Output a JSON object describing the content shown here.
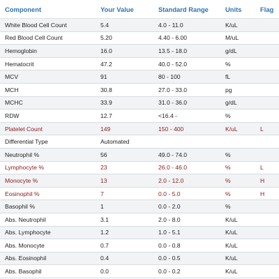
{
  "table": {
    "headers": {
      "component": "Component",
      "value": "Your Value",
      "range": "Standard Range",
      "units": "Units",
      "flag": "Flag"
    },
    "rows": [
      {
        "component": "White Blood Cell Count",
        "value": "5.4",
        "range": "4.0 - 11.0",
        "units": "K/uL",
        "flag": "",
        "abnormal": false
      },
      {
        "component": "Red Blood Cell Count",
        "value": "5.20",
        "range": "4.40 - 6.00",
        "units": "M/uL",
        "flag": "",
        "abnormal": false
      },
      {
        "component": "Hemoglobin",
        "value": "16.0",
        "range": "13.5 - 18.0",
        "units": "g/dL",
        "flag": "",
        "abnormal": false
      },
      {
        "component": "Hematocrit",
        "value": "47.2",
        "range": "40.0 - 52.0",
        "units": "%",
        "flag": "",
        "abnormal": false
      },
      {
        "component": "MCV",
        "value": "91",
        "range": "80 - 100",
        "units": "fL",
        "flag": "",
        "abnormal": false
      },
      {
        "component": "MCH",
        "value": "30.8",
        "range": "27.0 - 33.0",
        "units": "pg",
        "flag": "",
        "abnormal": false
      },
      {
        "component": "MCHC",
        "value": "33.9",
        "range": "31.0 - 36.0",
        "units": "g/dL",
        "flag": "",
        "abnormal": false
      },
      {
        "component": "RDW",
        "value": "12.7",
        "range": "<16.4 -",
        "units": "%",
        "flag": "",
        "abnormal": false
      },
      {
        "component": "Platelet Count",
        "value": "149",
        "range": "150 - 400",
        "units": "K/uL",
        "flag": "L",
        "abnormal": true
      },
      {
        "component": "Differential Type",
        "value": "Automated",
        "range": "",
        "units": "",
        "flag": "",
        "abnormal": false
      },
      {
        "component": "Neutrophil %",
        "value": "56",
        "range": "49.0 - 74.0",
        "units": "%",
        "flag": "",
        "abnormal": false
      },
      {
        "component": "Lymphocyte %",
        "value": "23",
        "range": "26.0 - 46.0",
        "units": "%",
        "flag": "L",
        "abnormal": true
      },
      {
        "component": "Monocyte %",
        "value": "13",
        "range": "2.0 - 12.0",
        "units": "%",
        "flag": "H",
        "abnormal": true
      },
      {
        "component": "Eosinophil %",
        "value": "7",
        "range": "0.0 - 5.0",
        "units": "%",
        "flag": "H",
        "abnormal": true
      },
      {
        "component": "Basophil %",
        "value": "1",
        "range": "0.0 - 2.0",
        "units": "%",
        "flag": "",
        "abnormal": false
      },
      {
        "component": "Abs. Neutrophil",
        "value": "3.1",
        "range": "2.0 - 8.0",
        "units": "K/uL",
        "flag": "",
        "abnormal": false
      },
      {
        "component": "Abs. Lymphocyte",
        "value": "1.2",
        "range": "1.0 - 5.1",
        "units": "K/uL",
        "flag": "",
        "abnormal": false
      },
      {
        "component": "Abs. Monocyte",
        "value": "0.7",
        "range": "0.0 - 0.8",
        "units": "K/uL",
        "flag": "",
        "abnormal": false
      },
      {
        "component": "Abs. Eosinophil",
        "value": "0.4",
        "range": "0.0 - 0.5",
        "units": "K/uL",
        "flag": "",
        "abnormal": false
      },
      {
        "component": "Abs. Basophil",
        "value": "0.0",
        "range": "0.0 - 0.2",
        "units": "K/uL",
        "flag": "",
        "abnormal": false
      }
    ]
  },
  "colors": {
    "header_text": "#2e73b0",
    "abnormal_text": "#8b1a1a",
    "normal_text": "#1f1f1f",
    "row_shade": "#f1f3f5"
  }
}
